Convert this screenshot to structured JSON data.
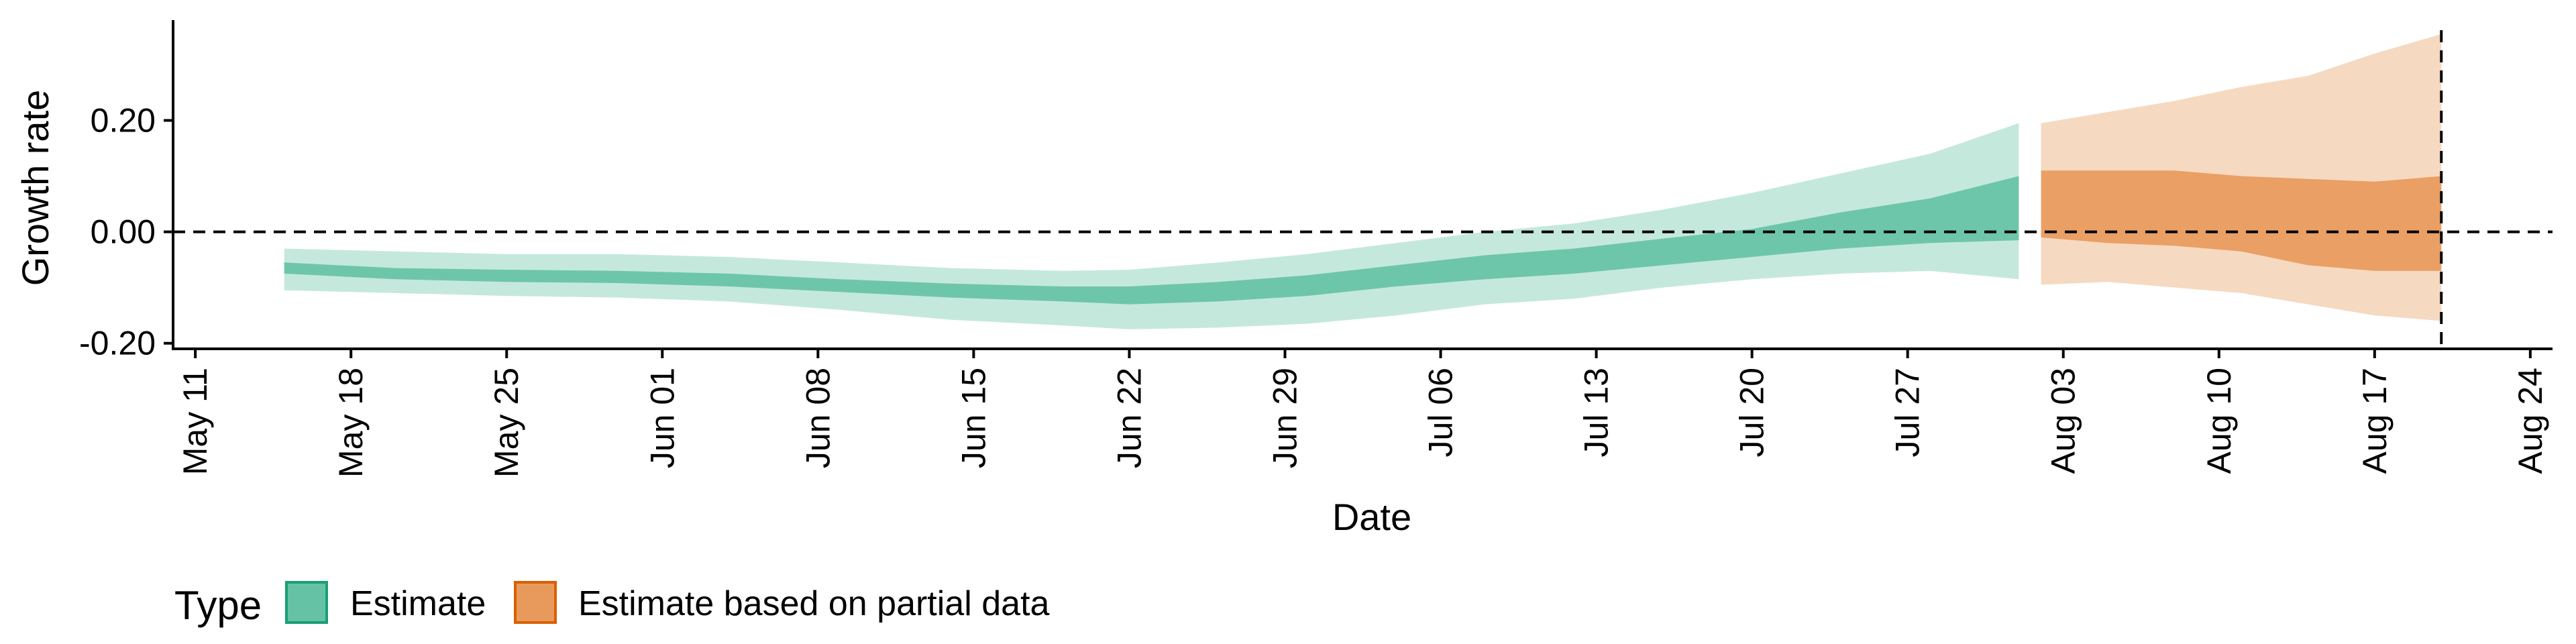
{
  "chart_data": {
    "type": "area",
    "title": "",
    "xlabel": "Date",
    "ylabel": "Growth rate",
    "x_axis": {
      "type": "date",
      "range": [
        "2020-05-10",
        "2020-08-25"
      ],
      "tick_dates": [
        "2020-05-11",
        "2020-05-18",
        "2020-05-25",
        "2020-06-01",
        "2020-06-08",
        "2020-06-15",
        "2020-06-22",
        "2020-06-29",
        "2020-07-06",
        "2020-07-13",
        "2020-07-20",
        "2020-07-27",
        "2020-08-03",
        "2020-08-10",
        "2020-08-17",
        "2020-08-24"
      ],
      "tick_labels": [
        "May 11",
        "May 18",
        "May 25",
        "Jun 01",
        "Jun 08",
        "Jun 15",
        "Jun 22",
        "Jun 29",
        "Jul 06",
        "Jul 13",
        "Jul 20",
        "Jul 27",
        "Aug 03",
        "Aug 10",
        "Aug 17",
        "Aug 24"
      ]
    },
    "y_axis": {
      "range": [
        -0.21,
        0.38
      ],
      "ticks": [
        -0.2,
        0.0,
        0.2
      ],
      "tick_labels": [
        "-0.20",
        "0.00",
        "0.20"
      ]
    },
    "reference_lines": {
      "horizontal_y": 0.0,
      "vertical_date": "2020-08-20",
      "style": "dashed"
    },
    "grid": false,
    "legend": {
      "position": "bottom-left",
      "title": "Type",
      "entries": [
        {
          "label": "Estimate",
          "fill": "#66c2a5",
          "border": "#1b9e77"
        },
        {
          "label": "Estimate based on partial data",
          "fill": "#e89a5c",
          "border": "#d95f02"
        }
      ]
    },
    "series": [
      {
        "name": "Estimate",
        "color": "#66c2a5",
        "points": [
          {
            "date": "2020-05-15",
            "outer_lo": -0.105,
            "outer_hi": -0.03,
            "inner_lo": -0.075,
            "inner_hi": -0.055
          },
          {
            "date": "2020-05-20",
            "outer_lo": -0.11,
            "outer_hi": -0.035,
            "inner_lo": -0.085,
            "inner_hi": -0.065
          },
          {
            "date": "2020-05-25",
            "outer_lo": -0.115,
            "outer_hi": -0.04,
            "inner_lo": -0.09,
            "inner_hi": -0.068
          },
          {
            "date": "2020-05-30",
            "outer_lo": -0.118,
            "outer_hi": -0.04,
            "inner_lo": -0.092,
            "inner_hi": -0.07
          },
          {
            "date": "2020-06-04",
            "outer_lo": -0.125,
            "outer_hi": -0.045,
            "inner_lo": -0.098,
            "inner_hi": -0.075
          },
          {
            "date": "2020-06-09",
            "outer_lo": -0.14,
            "outer_hi": -0.055,
            "inner_lo": -0.108,
            "inner_hi": -0.085
          },
          {
            "date": "2020-06-14",
            "outer_lo": -0.158,
            "outer_hi": -0.065,
            "inner_lo": -0.118,
            "inner_hi": -0.093
          },
          {
            "date": "2020-06-19",
            "outer_lo": -0.168,
            "outer_hi": -0.07,
            "inner_lo": -0.125,
            "inner_hi": -0.098
          },
          {
            "date": "2020-06-22",
            "outer_lo": -0.175,
            "outer_hi": -0.068,
            "inner_lo": -0.13,
            "inner_hi": -0.098
          },
          {
            "date": "2020-06-26",
            "outer_lo": -0.172,
            "outer_hi": -0.055,
            "inner_lo": -0.125,
            "inner_hi": -0.09
          },
          {
            "date": "2020-06-30",
            "outer_lo": -0.165,
            "outer_hi": -0.04,
            "inner_lo": -0.115,
            "inner_hi": -0.078
          },
          {
            "date": "2020-07-04",
            "outer_lo": -0.15,
            "outer_hi": -0.02,
            "inner_lo": -0.098,
            "inner_hi": -0.06
          },
          {
            "date": "2020-07-08",
            "outer_lo": -0.13,
            "outer_hi": 0.0,
            "inner_lo": -0.085,
            "inner_hi": -0.042
          },
          {
            "date": "2020-07-12",
            "outer_lo": -0.12,
            "outer_hi": 0.015,
            "inner_lo": -0.075,
            "inner_hi": -0.03
          },
          {
            "date": "2020-07-16",
            "outer_lo": -0.1,
            "outer_hi": 0.04,
            "inner_lo": -0.06,
            "inner_hi": -0.012
          },
          {
            "date": "2020-07-20",
            "outer_lo": -0.085,
            "outer_hi": 0.07,
            "inner_lo": -0.045,
            "inner_hi": 0.005
          },
          {
            "date": "2020-07-24",
            "outer_lo": -0.075,
            "outer_hi": 0.105,
            "inner_lo": -0.03,
            "inner_hi": 0.035
          },
          {
            "date": "2020-07-28",
            "outer_lo": -0.07,
            "outer_hi": 0.14,
            "inner_lo": -0.02,
            "inner_hi": 0.06
          },
          {
            "date": "2020-08-01",
            "outer_lo": -0.085,
            "outer_hi": 0.195,
            "inner_lo": -0.015,
            "inner_hi": 0.1
          }
        ]
      },
      {
        "name": "Estimate based on partial data",
        "color": "#e89a5c",
        "points": [
          {
            "date": "2020-08-02",
            "outer_lo": -0.095,
            "outer_hi": 0.195,
            "inner_lo": -0.01,
            "inner_hi": 0.11
          },
          {
            "date": "2020-08-05",
            "outer_lo": -0.09,
            "outer_hi": 0.215,
            "inner_lo": -0.02,
            "inner_hi": 0.11
          },
          {
            "date": "2020-08-08",
            "outer_lo": -0.1,
            "outer_hi": 0.235,
            "inner_lo": -0.025,
            "inner_hi": 0.11
          },
          {
            "date": "2020-08-11",
            "outer_lo": -0.11,
            "outer_hi": 0.26,
            "inner_lo": -0.035,
            "inner_hi": 0.1
          },
          {
            "date": "2020-08-14",
            "outer_lo": -0.13,
            "outer_hi": 0.28,
            "inner_lo": -0.06,
            "inner_hi": 0.095
          },
          {
            "date": "2020-08-17",
            "outer_lo": -0.15,
            "outer_hi": 0.32,
            "inner_lo": -0.07,
            "inner_hi": 0.09
          },
          {
            "date": "2020-08-20",
            "outer_lo": -0.16,
            "outer_hi": 0.355,
            "inner_lo": -0.07,
            "inner_hi": 0.1
          }
        ]
      }
    ]
  }
}
